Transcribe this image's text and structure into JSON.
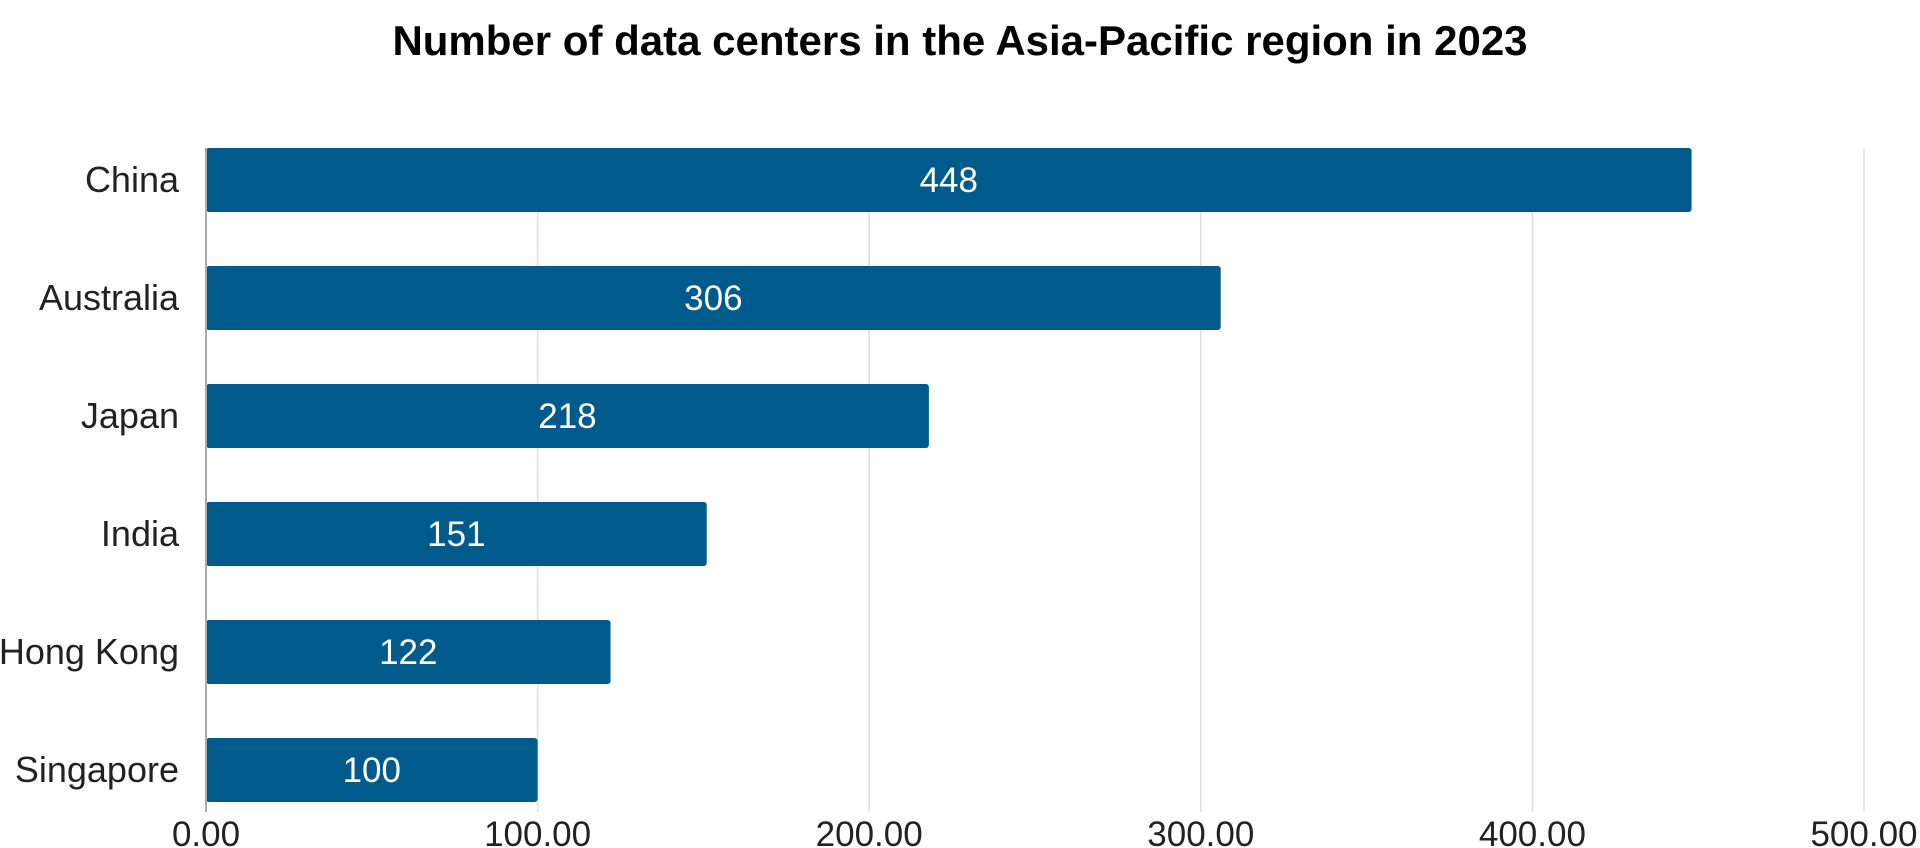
{
  "chart_data": {
    "type": "bar",
    "orientation": "horizontal",
    "title": "Number of data centers in the Asia-Pacific region in 2023",
    "xlabel": "",
    "ylabel": "",
    "categories": [
      "China",
      "Australia",
      "Japan",
      "India",
      "Hong Kong",
      "Singapore"
    ],
    "values": [
      448,
      306,
      218,
      151,
      122,
      100
    ],
    "data_labels": [
      "448",
      "306",
      "218",
      "151",
      "122",
      "100"
    ],
    "xlim": [
      0,
      500
    ],
    "x_ticks": [
      0,
      100,
      200,
      300,
      400,
      500
    ],
    "x_tick_labels": [
      "0.00",
      "100.00",
      "200.00",
      "300.00",
      "400.00",
      "500.00"
    ],
    "grid": "vertical",
    "legend": "none",
    "colors": {
      "bar": "#005a8c",
      "grid": "#dddddd",
      "axis": "#aaaaaa"
    }
  }
}
